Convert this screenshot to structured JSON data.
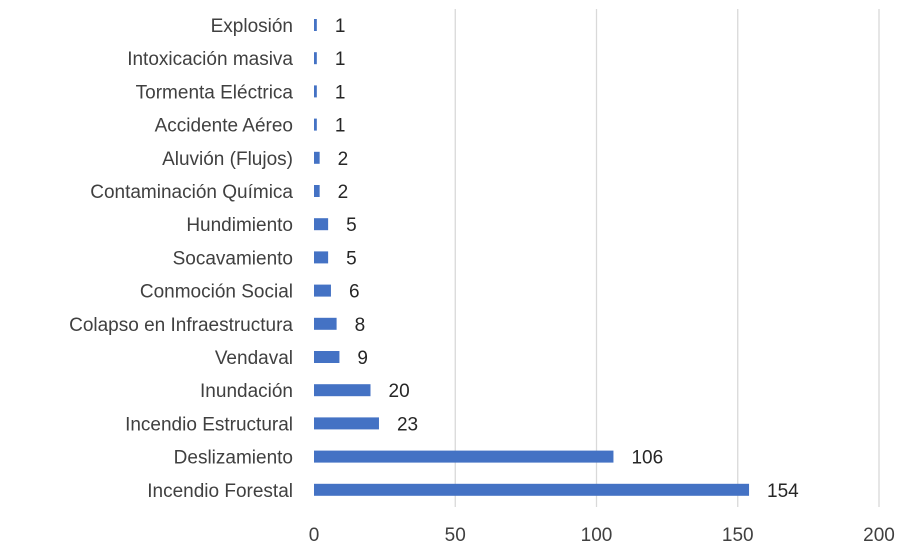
{
  "chart_data": {
    "type": "bar",
    "orientation": "horizontal",
    "categories": [
      "Explosión",
      "Intoxicación masiva",
      "Tormenta Eléctrica",
      "Accidente Aéreo",
      "Aluvión (Flujos)",
      "Contaminación Química",
      "Hundimiento",
      "Socavamiento",
      "Conmoción Social",
      "Colapso en Infraestructura",
      "Vendaval",
      "Inundación",
      "Incendio Estructural",
      "Deslizamiento",
      "Incendio Forestal"
    ],
    "values": [
      1,
      1,
      1,
      1,
      2,
      2,
      5,
      5,
      6,
      8,
      9,
      20,
      23,
      106,
      154
    ],
    "xlim": [
      0,
      200
    ],
    "xticks": [
      0,
      50,
      100,
      150,
      200
    ],
    "grid": "vertical",
    "bar_color": "#4472c4",
    "data_labels": true,
    "title": "",
    "xlabel": "",
    "ylabel": ""
  }
}
